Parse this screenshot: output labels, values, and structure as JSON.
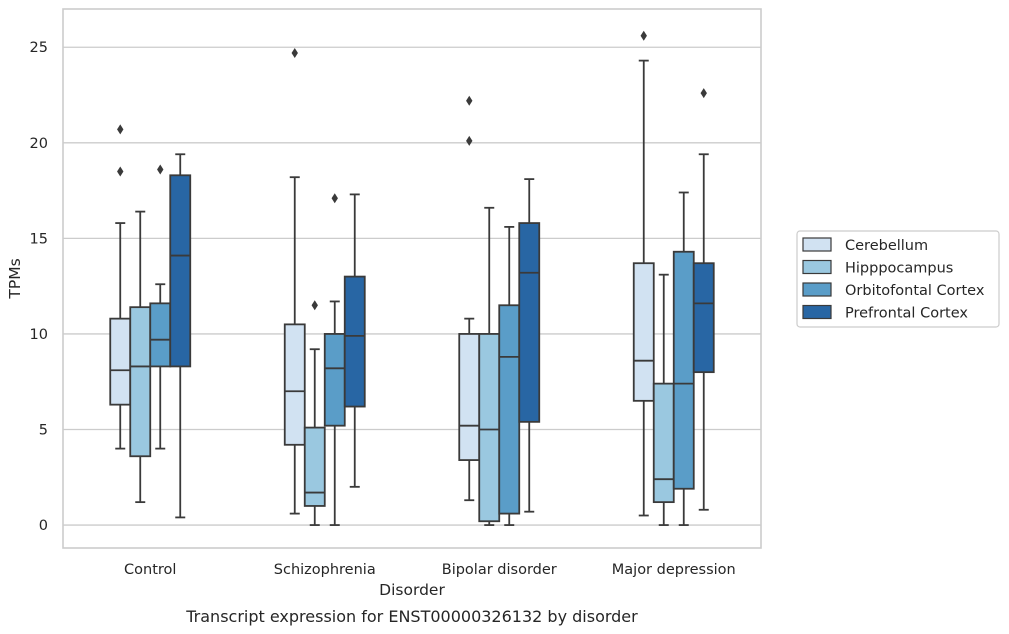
{
  "chart_data": {
    "type": "box",
    "xlabel": "Disorder",
    "ylabel": "TPMs",
    "caption": "Transcript expression for ENST00000326132 by disorder",
    "ylim": [
      -1.2,
      27
    ],
    "yticks": [
      0,
      5,
      10,
      15,
      20,
      25
    ],
    "categories": [
      "Control",
      "Schizophrenia",
      "Bipolar disorder",
      "Major depression"
    ],
    "grid": true,
    "legend_position": "right",
    "series": [
      {
        "name": "Cerebellum",
        "color": "#d1e2f2",
        "boxes": [
          {
            "whislo": 4.0,
            "q1": 6.3,
            "med": 8.1,
            "q3": 10.8,
            "whishi": 15.8,
            "fliers": [
              18.5,
              20.7
            ]
          },
          {
            "whislo": 0.6,
            "q1": 4.2,
            "med": 7.0,
            "q3": 10.5,
            "whishi": 18.2,
            "fliers": [
              24.7
            ]
          },
          {
            "whislo": 1.3,
            "q1": 3.4,
            "med": 5.2,
            "q3": 10.0,
            "whishi": 10.8,
            "fliers": [
              20.1,
              22.2
            ]
          },
          {
            "whislo": 0.5,
            "q1": 6.5,
            "med": 8.6,
            "q3": 13.7,
            "whishi": 24.3,
            "fliers": [
              25.6
            ]
          }
        ]
      },
      {
        "name": "Hipppocampus",
        "color": "#9ac8e0",
        "boxes": [
          {
            "whislo": 1.2,
            "q1": 3.6,
            "med": 8.3,
            "q3": 11.4,
            "whishi": 16.4,
            "fliers": []
          },
          {
            "whislo": 0.0,
            "q1": 1.0,
            "med": 1.7,
            "q3": 5.1,
            "whishi": 9.2,
            "fliers": [
              11.5
            ]
          },
          {
            "whislo": 0.0,
            "q1": 0.2,
            "med": 5.0,
            "q3": 10.0,
            "whishi": 16.6,
            "fliers": []
          },
          {
            "whislo": 0.0,
            "q1": 1.2,
            "med": 2.4,
            "q3": 7.4,
            "whishi": 13.1,
            "fliers": []
          }
        ]
      },
      {
        "name": "Orbitofontal Cortex",
        "color": "#5a9dc8",
        "boxes": [
          {
            "whislo": 4.0,
            "q1": 8.3,
            "med": 9.7,
            "q3": 11.6,
            "whishi": 12.6,
            "fliers": [
              18.6
            ]
          },
          {
            "whislo": 0.0,
            "q1": 5.2,
            "med": 8.2,
            "q3": 10.0,
            "whishi": 11.7,
            "fliers": [
              17.1
            ]
          },
          {
            "whislo": 0.0,
            "q1": 0.6,
            "med": 8.8,
            "q3": 11.5,
            "whishi": 15.6,
            "fliers": []
          },
          {
            "whislo": 0.0,
            "q1": 1.9,
            "med": 7.4,
            "q3": 14.3,
            "whishi": 17.4,
            "fliers": []
          }
        ]
      },
      {
        "name": "Prefrontal Cortex",
        "color": "#2866a4",
        "boxes": [
          {
            "whislo": 0.4,
            "q1": 8.3,
            "med": 14.1,
            "q3": 18.3,
            "whishi": 19.4,
            "fliers": []
          },
          {
            "whislo": 2.0,
            "q1": 6.2,
            "med": 9.9,
            "q3": 13.0,
            "whishi": 17.3,
            "fliers": []
          },
          {
            "whislo": 0.7,
            "q1": 5.4,
            "med": 13.2,
            "q3": 15.8,
            "whishi": 18.1,
            "fliers": []
          },
          {
            "whislo": 0.8,
            "q1": 8.0,
            "med": 11.6,
            "q3": 13.7,
            "whishi": 19.4,
            "fliers": [
              22.6
            ]
          }
        ]
      }
    ]
  }
}
